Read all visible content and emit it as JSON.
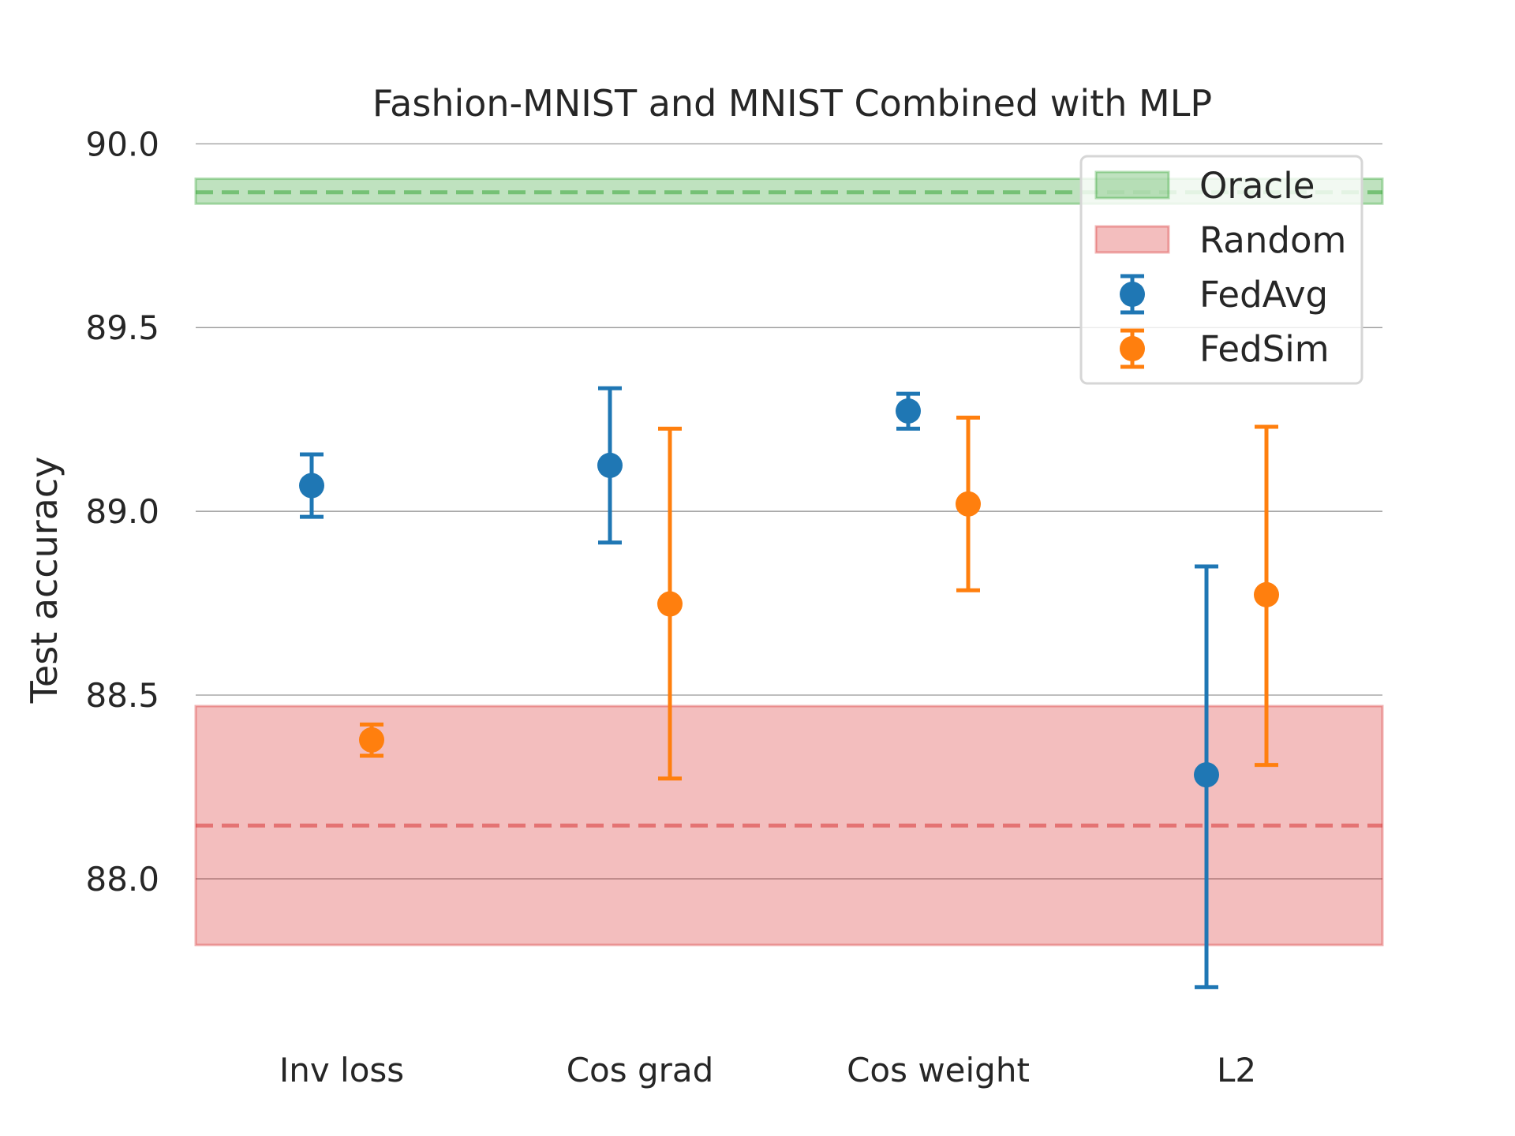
{
  "chart_data": {
    "type": "errorbar",
    "title": "Fashion-MNIST and MNIST Combined with MLP",
    "xlabel": "",
    "ylabel": "Test accuracy",
    "ylim": [
      87.6,
      90.0
    ],
    "yticks": [
      88.0,
      88.5,
      89.0,
      89.5,
      90.0
    ],
    "ytick_labels": [
      "88.0",
      "88.5",
      "89.0",
      "89.5",
      "90.0"
    ],
    "grid": true,
    "categories": [
      "Inv loss",
      "Cos grad",
      "Cos weight",
      "L2"
    ],
    "series": [
      {
        "name": "FedAvg",
        "color": "#1f77b4",
        "values": [
          89.07,
          89.125,
          89.273,
          88.283
        ],
        "err_low": [
          88.985,
          88.915,
          89.225,
          87.705
        ],
        "err_high": [
          89.155,
          89.335,
          89.32,
          88.85
        ]
      },
      {
        "name": "FedSim",
        "color": "#ff7f0e",
        "values": [
          88.378,
          88.748,
          89.02,
          88.773
        ],
        "err_low": [
          88.335,
          88.273,
          88.785,
          88.31
        ],
        "err_high": [
          88.42,
          89.225,
          89.255,
          89.23
        ]
      }
    ],
    "bands": [
      {
        "name": "Oracle",
        "color": "#2ca02c",
        "center": 89.868,
        "low": 89.837,
        "high": 89.905
      },
      {
        "name": "Random",
        "color": "#d62728",
        "center": 88.145,
        "low": 87.82,
        "high": 88.47
      }
    ],
    "legend": {
      "position": "top-right",
      "entries": [
        "Oracle",
        "Random",
        "FedAvg",
        "FedSim"
      ]
    }
  }
}
